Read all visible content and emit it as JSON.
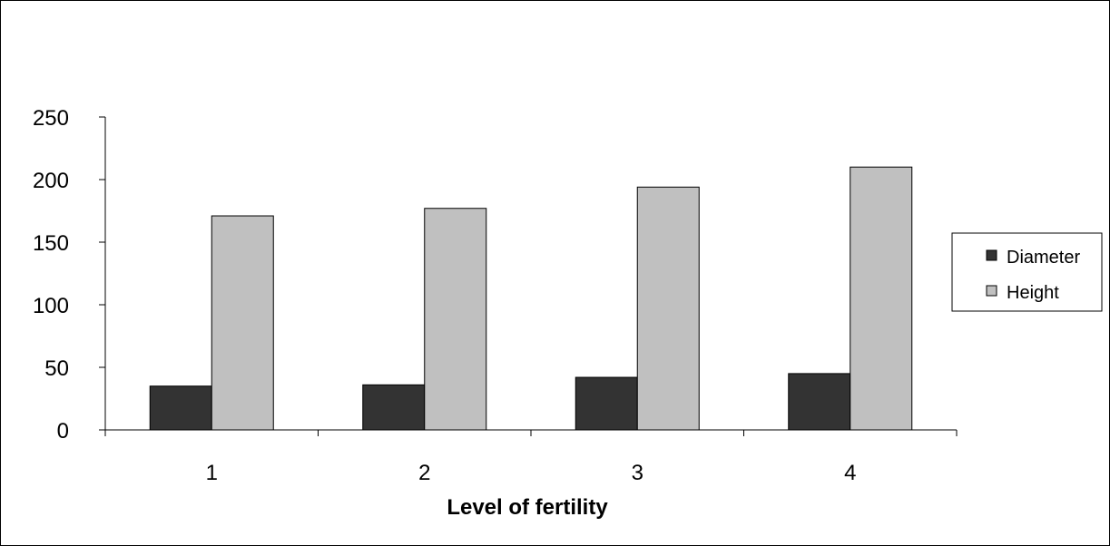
{
  "chart_data": {
    "type": "bar",
    "title": "",
    "xlabel": "Level of fertility",
    "ylabel": "",
    "categories": [
      "1",
      "2",
      "3",
      "4"
    ],
    "series": [
      {
        "name": "Diameter",
        "values": [
          35,
          36,
          42,
          45
        ],
        "color": "#333333"
      },
      {
        "name": "Height",
        "values": [
          171,
          177,
          194,
          210
        ],
        "color": "#c0c0c0"
      }
    ],
    "ylim": [
      0,
      250
    ],
    "yticks": [
      0,
      50,
      100,
      150,
      200,
      250
    ],
    "grid": false,
    "legend_position": "right"
  }
}
